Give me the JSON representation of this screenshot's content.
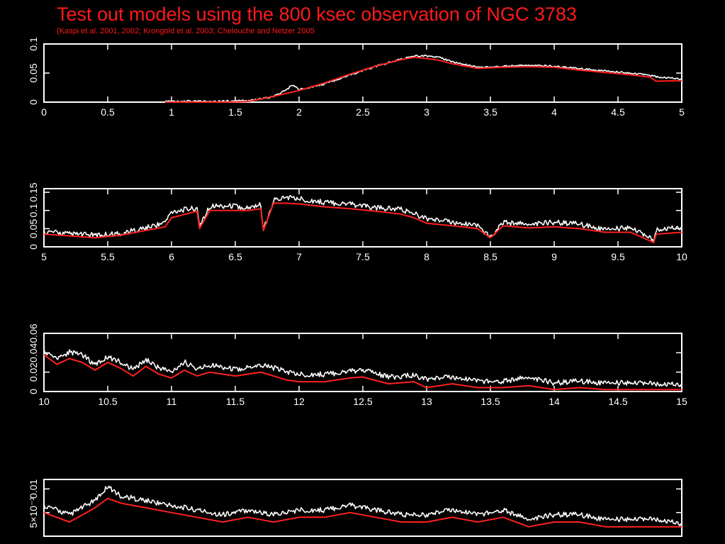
{
  "slide": {
    "title": "Test out models using the 800 ksec observation of NGC 3783",
    "subtitle": "(Kaspi et al. 2001, 2002; Krongold et al. 2003; Chelouche and Netzer 2005"
  },
  "colors": {
    "background": "#000000",
    "axes": "#ffffff",
    "data": "#ffffff",
    "model": "#ff2020",
    "title": "#ff1a1a"
  },
  "chart_data": [
    {
      "type": "line",
      "xlim": [
        0,
        5
      ],
      "ylim": [
        0,
        0.1
      ],
      "xticks": [
        "0",
        "0.5",
        "1",
        "1.5",
        "2",
        "2.5",
        "3",
        "3.5",
        "4",
        "4.5",
        "5"
      ],
      "yticks": [
        "0",
        "0.05",
        "0.1"
      ],
      "series": [
        {
          "role": "data",
          "x": [
            0.95,
            1.2,
            1.4,
            1.6,
            1.8,
            1.9,
            1.95,
            2.0,
            2.2,
            2.4,
            2.6,
            2.8,
            2.9,
            3.0,
            3.1,
            3.2,
            3.4,
            3.6,
            3.8,
            4.0,
            4.2,
            4.4,
            4.6,
            4.75,
            4.8,
            5.0
          ],
          "y": [
            0.0,
            0.0,
            0.0,
            0.001,
            0.008,
            0.02,
            0.028,
            0.02,
            0.03,
            0.045,
            0.06,
            0.072,
            0.078,
            0.078,
            0.075,
            0.068,
            0.058,
            0.06,
            0.062,
            0.06,
            0.056,
            0.052,
            0.048,
            0.045,
            0.042,
            0.038
          ]
        },
        {
          "role": "model",
          "x": [
            0.95,
            1.2,
            1.4,
            1.6,
            1.8,
            2.0,
            2.2,
            2.4,
            2.6,
            2.8,
            2.9,
            3.0,
            3.1,
            3.2,
            3.4,
            3.6,
            3.8,
            4.0,
            4.2,
            4.4,
            4.6,
            4.75,
            4.8,
            5.0
          ],
          "y": [
            0.0,
            0.0,
            0.0,
            0.001,
            0.01,
            0.02,
            0.033,
            0.048,
            0.062,
            0.073,
            0.077,
            0.075,
            0.072,
            0.066,
            0.058,
            0.06,
            0.061,
            0.06,
            0.055,
            0.051,
            0.047,
            0.043,
            0.036,
            0.037
          ]
        }
      ]
    },
    {
      "type": "line",
      "xlim": [
        5,
        10
      ],
      "ylim": [
        0,
        0.16
      ],
      "xticks": [
        "5",
        "5.5",
        "6",
        "6.5",
        "7",
        "7.5",
        "8",
        "8.5",
        "9",
        "9.5",
        "10"
      ],
      "yticks": [
        "0",
        "0.05",
        "0.1",
        "0.15"
      ],
      "series": [
        {
          "role": "data",
          "x": [
            5.0,
            5.2,
            5.4,
            5.6,
            5.8,
            5.95,
            6.0,
            6.2,
            6.22,
            6.3,
            6.5,
            6.6,
            6.7,
            6.72,
            6.8,
            6.9,
            7.0,
            7.2,
            7.4,
            7.6,
            7.8,
            7.9,
            8.0,
            8.2,
            8.4,
            8.5,
            8.6,
            8.8,
            9.0,
            9.2,
            9.4,
            9.6,
            9.78,
            9.8,
            10.0
          ],
          "y": [
            0.035,
            0.028,
            0.025,
            0.03,
            0.045,
            0.06,
            0.09,
            0.1,
            0.045,
            0.105,
            0.105,
            0.1,
            0.11,
            0.04,
            0.12,
            0.13,
            0.125,
            0.115,
            0.11,
            0.1,
            0.095,
            0.085,
            0.07,
            0.06,
            0.05,
            0.02,
            0.06,
            0.055,
            0.06,
            0.055,
            0.04,
            0.045,
            0.01,
            0.04,
            0.045
          ]
        },
        {
          "role": "model",
          "x": [
            5.0,
            5.2,
            5.4,
            5.6,
            5.8,
            5.95,
            6.0,
            6.2,
            6.22,
            6.3,
            6.5,
            6.6,
            6.7,
            6.72,
            6.8,
            6.9,
            7.0,
            7.2,
            7.4,
            7.6,
            7.8,
            7.9,
            8.0,
            8.2,
            8.4,
            8.5,
            8.6,
            8.8,
            9.0,
            9.2,
            9.4,
            9.6,
            9.78,
            9.8,
            10.0
          ],
          "y": [
            0.035,
            0.03,
            0.025,
            0.032,
            0.045,
            0.055,
            0.08,
            0.098,
            0.05,
            0.1,
            0.1,
            0.1,
            0.105,
            0.045,
            0.12,
            0.12,
            0.118,
            0.11,
            0.105,
            0.098,
            0.09,
            0.08,
            0.065,
            0.058,
            0.05,
            0.025,
            0.058,
            0.052,
            0.055,
            0.05,
            0.04,
            0.04,
            0.012,
            0.035,
            0.04
          ]
        }
      ]
    },
    {
      "type": "line",
      "xlim": [
        10,
        15
      ],
      "ylim": [
        0,
        0.06
      ],
      "xticks": [
        "10",
        "10.5",
        "11",
        "11.5",
        "12",
        "12.5",
        "13",
        "13.5",
        "14",
        "14.5",
        "15"
      ],
      "yticks": [
        "0",
        "0.02",
        "0.04",
        "0.06"
      ],
      "series": [
        {
          "role": "data",
          "x": [
            10.0,
            10.1,
            10.2,
            10.3,
            10.4,
            10.5,
            10.6,
            10.7,
            10.8,
            10.9,
            11.0,
            11.1,
            11.2,
            11.3,
            11.5,
            11.7,
            11.9,
            12.0,
            12.2,
            12.4,
            12.5,
            12.7,
            12.9,
            13.0,
            13.2,
            13.4,
            13.6,
            13.8,
            14.0,
            14.2,
            14.4,
            14.6,
            14.8,
            15.0
          ],
          "y": [
            0.04,
            0.03,
            0.038,
            0.035,
            0.025,
            0.033,
            0.028,
            0.02,
            0.03,
            0.022,
            0.018,
            0.028,
            0.02,
            0.025,
            0.02,
            0.025,
            0.018,
            0.015,
            0.015,
            0.018,
            0.02,
            0.012,
            0.014,
            0.01,
            0.012,
            0.008,
            0.008,
            0.012,
            0.006,
            0.008,
            0.006,
            0.006,
            0.005,
            0.004
          ]
        },
        {
          "role": "model",
          "x": [
            10.0,
            10.1,
            10.2,
            10.3,
            10.4,
            10.5,
            10.6,
            10.7,
            10.8,
            10.9,
            11.0,
            11.1,
            11.2,
            11.3,
            11.5,
            11.7,
            11.9,
            12.0,
            12.2,
            12.4,
            12.5,
            12.7,
            12.9,
            13.0,
            13.2,
            13.4,
            13.6,
            13.8,
            14.0,
            14.2,
            14.4,
            14.6,
            14.8,
            15.0
          ],
          "y": [
            0.038,
            0.028,
            0.034,
            0.03,
            0.022,
            0.03,
            0.024,
            0.016,
            0.026,
            0.018,
            0.014,
            0.022,
            0.016,
            0.02,
            0.016,
            0.02,
            0.012,
            0.01,
            0.01,
            0.014,
            0.015,
            0.008,
            0.01,
            0.004,
            0.008,
            0.004,
            0.004,
            0.006,
            0.002,
            0.004,
            0.002,
            0.002,
            0.002,
            0.002
          ]
        }
      ]
    },
    {
      "type": "line",
      "xlim": [
        15,
        20
      ],
      "ylim": [
        0,
        0.012
      ],
      "yticks": [
        "5×10⁻³",
        "0.01"
      ],
      "series": [
        {
          "role": "data",
          "x": [
            15.0,
            15.2,
            15.4,
            15.5,
            15.6,
            15.8,
            16.0,
            16.2,
            16.4,
            16.6,
            16.8,
            17.0,
            17.2,
            17.4,
            17.6,
            17.8,
            18.0,
            18.2,
            18.4,
            18.6,
            18.8,
            19.0,
            19.2,
            19.4,
            19.6,
            19.8,
            20.0
          ],
          "y": [
            0.006,
            0.004,
            0.007,
            0.01,
            0.008,
            0.007,
            0.006,
            0.005,
            0.004,
            0.005,
            0.004,
            0.005,
            0.005,
            0.006,
            0.005,
            0.004,
            0.004,
            0.005,
            0.004,
            0.005,
            0.003,
            0.004,
            0.004,
            0.003,
            0.003,
            0.003,
            0.002
          ]
        },
        {
          "role": "model",
          "x": [
            15.0,
            15.2,
            15.4,
            15.5,
            15.6,
            15.8,
            16.0,
            16.2,
            16.4,
            16.6,
            16.8,
            17.0,
            17.2,
            17.4,
            17.6,
            17.8,
            18.0,
            18.2,
            18.4,
            18.6,
            18.8,
            19.0,
            19.2,
            19.4,
            19.6,
            19.8,
            20.0
          ],
          "y": [
            0.005,
            0.003,
            0.006,
            0.008,
            0.007,
            0.006,
            0.005,
            0.004,
            0.003,
            0.004,
            0.003,
            0.004,
            0.004,
            0.005,
            0.004,
            0.003,
            0.003,
            0.004,
            0.003,
            0.004,
            0.002,
            0.003,
            0.003,
            0.002,
            0.002,
            0.002,
            0.002
          ]
        }
      ]
    }
  ]
}
